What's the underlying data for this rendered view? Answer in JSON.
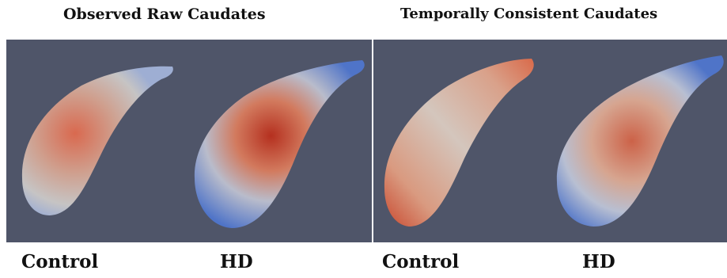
{
  "headings": {
    "left": "Observed Raw Caudates",
    "right": "Temporally Consistent Caudates"
  },
  "labels": [
    "Control",
    "HD",
    "Control",
    "HD"
  ],
  "colors": {
    "background_panel": "#4f5569",
    "surface_neutral": "#c9c7c6",
    "surface_blue": "#5b7fcf",
    "surface_red": "#c0392b"
  },
  "shapes": [
    {
      "name": "raw-control-caudate",
      "panel": "observed-raw",
      "group": "Control",
      "tint": "red-center"
    },
    {
      "name": "raw-hd-caudate",
      "panel": "observed-raw",
      "group": "HD",
      "tint": "blue-edges-red-center"
    },
    {
      "name": "consistent-control-caudate",
      "panel": "temporally-consistent",
      "group": "Control",
      "tint": "red-tips"
    },
    {
      "name": "consistent-hd-caudate",
      "panel": "temporally-consistent",
      "group": "HD",
      "tint": "blue-edges-red-center"
    }
  ]
}
